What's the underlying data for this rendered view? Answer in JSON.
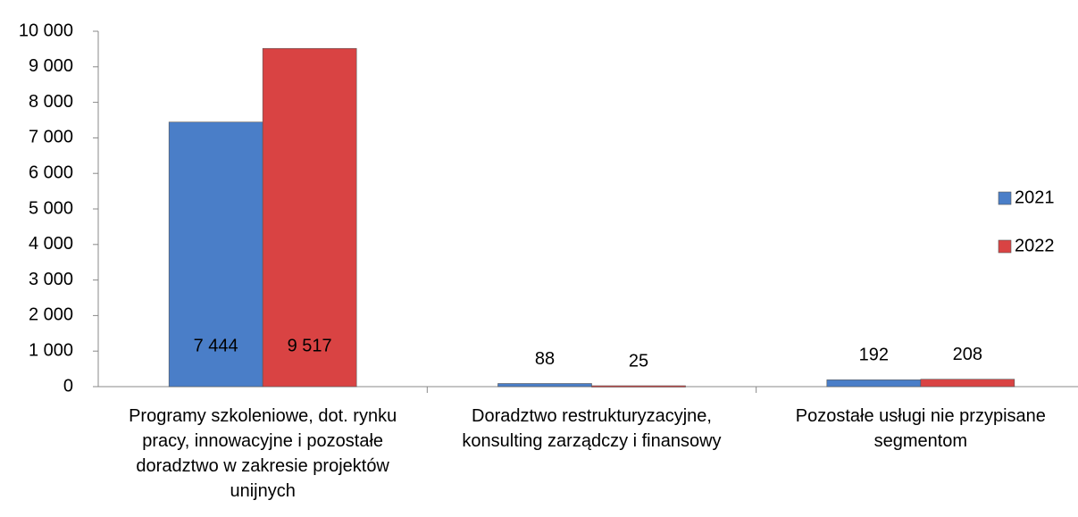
{
  "chart_data": {
    "type": "bar",
    "categories": [
      "Programy szkoleniowe, dot. rynku pracy, innowacyjne i pozostałe doradztwo w zakresie projektów unijnych",
      "Doradztwo restrukturyzacyjne, konsulting zarządczy i finansowy",
      "Pozostałe usługi nie przypisane segmentom"
    ],
    "series": [
      {
        "name": "2021",
        "color": "#4a7ec8",
        "values": [
          7444,
          88,
          192
        ],
        "value_labels": [
          "7 444",
          "88",
          "192"
        ]
      },
      {
        "name": "2022",
        "color": "#d94343",
        "values": [
          9517,
          25,
          208
        ],
        "value_labels": [
          "9 517",
          "25",
          "208"
        ]
      }
    ],
    "ylim": [
      0,
      10000
    ],
    "yticks": [
      0,
      {
        "value": 1000,
        "label": "1 000"
      },
      {
        "value": 2000,
        "label": "2 000"
      },
      {
        "value": 3000,
        "label": "3 000"
      },
      {
        "value": 4000,
        "label": "4 000"
      },
      {
        "value": 5000,
        "label": "5 000"
      },
      {
        "value": 6000,
        "label": "6 000"
      },
      {
        "value": 7000,
        "label": "7 000"
      },
      {
        "value": 8000,
        "label": "8 000"
      },
      {
        "value": 9000,
        "label": "9 000"
      },
      {
        "value": 10000,
        "label": "10 000"
      }
    ],
    "legend": "right"
  }
}
